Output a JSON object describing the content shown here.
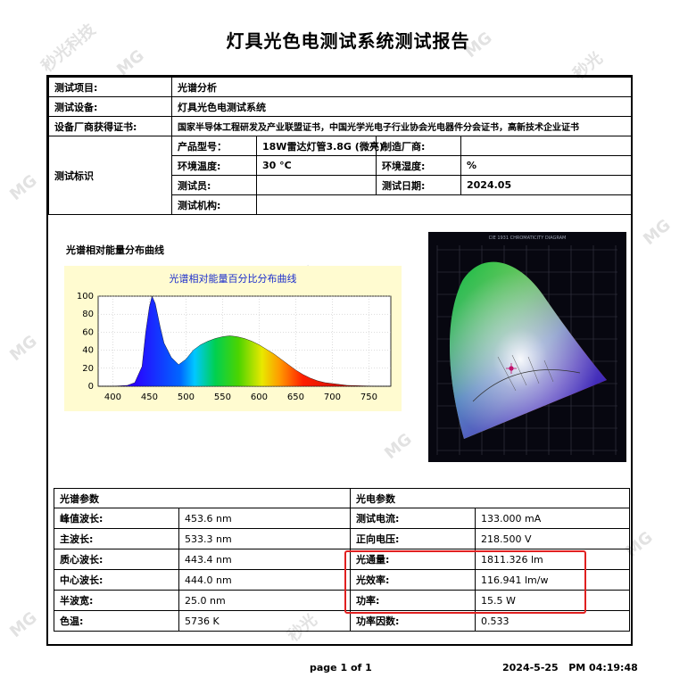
{
  "title": "灯具光色电测试系统测试报告",
  "info": {
    "test_item_label": "测试项目:",
    "test_item_value": "光谱分析",
    "equipment_label": "测试设备:",
    "equipment_value": "灯具光色电测试系统",
    "cert_label": "设备厂商获得证书:",
    "cert_value": "国家半导体工程研发及产业联盟证书，中国光学光电子行业协会光电器件分会证书，高新技术企业证书",
    "mark_label": "测试标识",
    "model_label": "产品型号：",
    "model_value": "18W雷达灯管3.8G (微亮)",
    "maker_label": "制造厂商:",
    "maker_value": "",
    "temp_label": "环境温度:",
    "temp_value": "30 °C",
    "humidity_label": "环境湿度:",
    "humidity_value": "%",
    "tester_label": "测试员:",
    "tester_value": "",
    "date_label": "测试日期:",
    "date_value": "2024.05",
    "org_label": "测试机构:",
    "org_value": ""
  },
  "figure": {
    "caption": "光谱相对能量分布曲线",
    "cie_caption": "CIE 1931 CHROMATICITY DIAGRAM"
  },
  "chart_data": {
    "type": "area",
    "title": "光谱相对能量百分比分布曲线",
    "xlabel": "",
    "ylabel": "",
    "xlim": [
      380,
      780
    ],
    "ylim": [
      0,
      100
    ],
    "x_ticks": [
      400,
      450,
      500,
      550,
      600,
      650,
      700,
      750
    ],
    "y_ticks": [
      0,
      20,
      40,
      60,
      80,
      100
    ],
    "grid": true,
    "x": [
      380,
      400,
      420,
      430,
      440,
      445,
      450,
      453.6,
      458,
      465,
      470,
      480,
      490,
      500,
      510,
      520,
      530,
      540,
      550,
      560,
      570,
      580,
      590,
      600,
      610,
      620,
      630,
      640,
      650,
      660,
      670,
      680,
      690,
      700,
      720,
      740,
      760,
      780
    ],
    "values": [
      0,
      0,
      1,
      4,
      22,
      60,
      88,
      100,
      92,
      65,
      48,
      32,
      24,
      30,
      40,
      46,
      50,
      53,
      55,
      56,
      55,
      53,
      50,
      46,
      41,
      36,
      30,
      24,
      18,
      13,
      9,
      6,
      4,
      3,
      1,
      0.5,
      0,
      0
    ]
  },
  "spectral": {
    "header": "光谱参数",
    "rows": [
      {
        "k": "峰值波长:",
        "v": "453.6 nm"
      },
      {
        "k": "主波长:",
        "v": "533.3 nm"
      },
      {
        "k": "质心波长:",
        "v": "443.4 nm"
      },
      {
        "k": "中心波长:",
        "v": "444.0 nm"
      },
      {
        "k": "半波宽:",
        "v": "25.0 nm"
      },
      {
        "k": "色温:",
        "v": "5736 K"
      }
    ]
  },
  "electric": {
    "header": "光电参数",
    "rows": [
      {
        "k": "测试电流:",
        "v": "133.000 mA"
      },
      {
        "k": "正向电压:",
        "v": "218.500 V"
      },
      {
        "k": "光通量:",
        "v": "1811.326 lm"
      },
      {
        "k": "光效率:",
        "v": "116.941 lm/w"
      },
      {
        "k": "功率:",
        "v": "15.5 W"
      },
      {
        "k": "功率因数:",
        "v": "0.533"
      }
    ]
  },
  "footer": {
    "page": "page 1 of 1",
    "datetime": "2024-5-25   PM 04:19:48"
  },
  "watermarks": [
    "MG",
    "秒光",
    "秒光科技"
  ],
  "colors": {
    "highlight": "#e02020",
    "chart_bg": "#fffbd0",
    "chart_title": "#1a2ccc"
  }
}
